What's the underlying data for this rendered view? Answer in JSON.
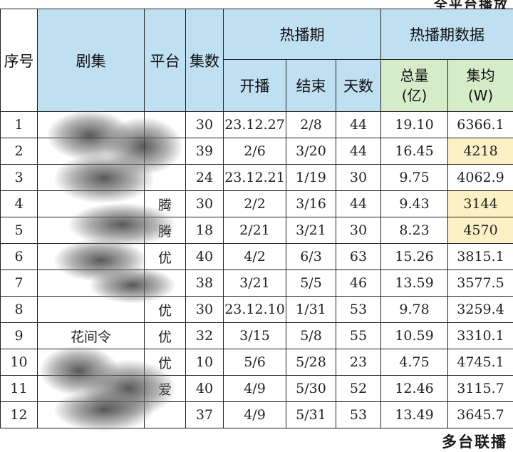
{
  "captions": {
    "top": "全平台播放",
    "bottom": "多台联播"
  },
  "headers": {
    "index": "序号",
    "title": "剧集",
    "platform": "平台",
    "episodes": "集数",
    "hot_period": "热播期",
    "hot_period_data": "热播期数据",
    "start": "开播",
    "end": "结束",
    "days": "天数",
    "total_line1": "总量",
    "total_line2": "(亿)",
    "avg_line1": "集均",
    "avg_line2": "(W)"
  },
  "rows": [
    {
      "index": "1",
      "title": "",
      "platform": "",
      "episodes": "30",
      "start": "23.12.27",
      "end": "2/8",
      "days": "44",
      "total": "19.10",
      "avg": "6366.1",
      "avg_highlight": false
    },
    {
      "index": "2",
      "title": "",
      "platform": "",
      "episodes": "39",
      "start": "2/6",
      "end": "3/20",
      "days": "44",
      "total": "16.45",
      "avg": "4218",
      "avg_highlight": true
    },
    {
      "index": "3",
      "title": "",
      "platform": "",
      "episodes": "24",
      "start": "23.12.21",
      "end": "1/19",
      "days": "30",
      "total": "9.75",
      "avg": "4062.9",
      "avg_highlight": false
    },
    {
      "index": "4",
      "title": "",
      "platform": "腾",
      "episodes": "30",
      "start": "2/2",
      "end": "3/16",
      "days": "44",
      "total": "9.43",
      "avg": "3144",
      "avg_highlight": true
    },
    {
      "index": "5",
      "title": "",
      "platform": "腾",
      "episodes": "18",
      "start": "2/21",
      "end": "3/21",
      "days": "30",
      "total": "8.23",
      "avg": "4570",
      "avg_highlight": true
    },
    {
      "index": "6",
      "title": "",
      "platform": "优",
      "episodes": "40",
      "start": "4/2",
      "end": "6/3",
      "days": "63",
      "total": "15.26",
      "avg": "3815.1",
      "avg_highlight": false
    },
    {
      "index": "7",
      "title": "",
      "platform": "",
      "episodes": "38",
      "start": "3/21",
      "end": "5/5",
      "days": "46",
      "total": "13.59",
      "avg": "3577.5",
      "avg_highlight": false
    },
    {
      "index": "8",
      "title": "",
      "platform": "优",
      "episodes": "30",
      "start": "23.12.10",
      "end": "1/31",
      "days": "53",
      "total": "9.78",
      "avg": "3259.4",
      "avg_highlight": false
    },
    {
      "index": "9",
      "title": "花间令",
      "platform": "优",
      "episodes": "32",
      "start": "3/15",
      "end": "5/8",
      "days": "55",
      "total": "10.59",
      "avg": "3310.1",
      "avg_highlight": false
    },
    {
      "index": "10",
      "title": "",
      "platform": "优",
      "episodes": "10",
      "start": "5/6",
      "end": "5/28",
      "days": "23",
      "total": "4.75",
      "avg": "4745.1",
      "avg_highlight": false
    },
    {
      "index": "11",
      "title": "",
      "platform": "爱",
      "episodes": "40",
      "start": "4/9",
      "end": "5/30",
      "days": "52",
      "total": "12.46",
      "avg": "3115.7",
      "avg_highlight": false
    },
    {
      "index": "12",
      "title": "",
      "platform": "",
      "episodes": "37",
      "start": "4/9",
      "end": "5/31",
      "days": "53",
      "total": "13.49",
      "avg": "3645.7",
      "avg_highlight": false
    }
  ],
  "colors": {
    "header_blue": "#bfe0f1",
    "header_green": "#d6ecc9",
    "highlight_yellow": "#fbf1c4"
  }
}
